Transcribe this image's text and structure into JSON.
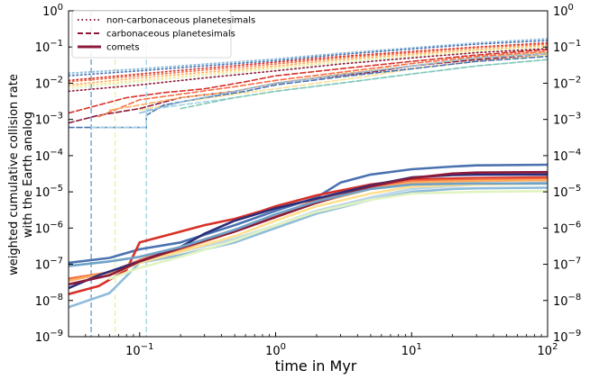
{
  "chart_data": {
    "type": "line",
    "xlabel": "time in Myr",
    "ylabel": "weighted cumulative collision rate",
    "ylabel_line2": "with the Earth analog",
    "xscale": "log",
    "yscale": "log",
    "xlim": [
      0.03,
      100
    ],
    "ylim": [
      1e-09,
      1
    ],
    "x_ticks": [
      {
        "value": 0.1,
        "base": "10",
        "exp": "−1"
      },
      {
        "value": 1,
        "base": "10",
        "exp": "0"
      },
      {
        "value": 10,
        "base": "10",
        "exp": "1"
      },
      {
        "value": 100,
        "base": "10",
        "exp": "2"
      }
    ],
    "y_ticks": [
      {
        "value": 1,
        "base": "10",
        "exp": "0"
      },
      {
        "value": 0.1,
        "base": "10",
        "exp": "−1"
      },
      {
        "value": 0.01,
        "base": "10",
        "exp": "−2"
      },
      {
        "value": 0.001,
        "base": "10",
        "exp": "−3"
      },
      {
        "value": 0.0001,
        "base": "10",
        "exp": "−4"
      },
      {
        "value": 1e-05,
        "base": "10",
        "exp": "−5"
      },
      {
        "value": 1e-06,
        "base": "10",
        "exp": "−6"
      },
      {
        "value": 1e-07,
        "base": "10",
        "exp": "−7"
      },
      {
        "value": 1e-08,
        "base": "10",
        "exp": "−8"
      },
      {
        "value": 1e-09,
        "base": "10",
        "exp": "−9"
      }
    ],
    "right_y_ticks": true,
    "grid": false,
    "legend_position": "top-left",
    "legend": [
      {
        "label": "non-carbonaceous planetesimals",
        "style": "dotted",
        "color": "#8b1a3a"
      },
      {
        "label": "carbonaceous planetesimals",
        "style": "dashed",
        "color": "#8b1a3a"
      },
      {
        "label": "comets",
        "style": "solid",
        "color": "#8b1a3a"
      }
    ],
    "vertical_lines": [
      {
        "x": 0.044,
        "color": "#6fa2c7"
      },
      {
        "x": 0.066,
        "color": "#e8f0b0"
      },
      {
        "x": 0.112,
        "color": "#a8d3e6"
      }
    ],
    "series": [
      {
        "style": "dotted",
        "color": "#bcd7e8",
        "x": [
          0.03,
          0.1,
          0.3,
          1,
          3,
          10,
          30,
          100
        ],
        "y": [
          0.018,
          0.024,
          0.032,
          0.045,
          0.065,
          0.09,
          0.12,
          0.16
        ]
      },
      {
        "style": "dotted",
        "color": "#8fbcd9",
        "x": [
          0.03,
          0.1,
          0.3,
          1,
          3,
          10,
          30,
          100
        ],
        "y": [
          0.019,
          0.025,
          0.034,
          0.047,
          0.068,
          0.095,
          0.13,
          0.17
        ]
      },
      {
        "style": "dotted",
        "color": "#4a72b0",
        "x": [
          0.03,
          0.1,
          0.3,
          1,
          3,
          10,
          30,
          100
        ],
        "y": [
          0.016,
          0.022,
          0.03,
          0.042,
          0.062,
          0.088,
          0.12,
          0.15
        ]
      },
      {
        "style": "dotted",
        "color": "#d73027",
        "x": [
          0.03,
          0.1,
          0.3,
          1,
          3,
          10,
          30,
          100
        ],
        "y": [
          0.012,
          0.018,
          0.026,
          0.038,
          0.055,
          0.075,
          0.1,
          0.13
        ]
      },
      {
        "style": "dotted",
        "color": "#f46d43",
        "x": [
          0.03,
          0.1,
          0.3,
          1,
          3,
          10,
          30,
          100
        ],
        "y": [
          0.011,
          0.016,
          0.023,
          0.034,
          0.05,
          0.07,
          0.095,
          0.12
        ]
      },
      {
        "style": "dotted",
        "color": "#fdae61",
        "x": [
          0.03,
          0.1,
          0.3,
          1,
          3,
          10,
          30,
          100
        ],
        "y": [
          0.009,
          0.014,
          0.02,
          0.03,
          0.045,
          0.063,
          0.085,
          0.11
        ]
      },
      {
        "style": "dotted",
        "color": "#fee090",
        "x": [
          0.03,
          0.1,
          0.3,
          1,
          3,
          10,
          30,
          100
        ],
        "y": [
          0.008,
          0.012,
          0.018,
          0.027,
          0.04,
          0.058,
          0.08,
          0.1
        ]
      },
      {
        "style": "dotted",
        "color": "#e0f3c0",
        "x": [
          0.03,
          0.1,
          0.3,
          1,
          3,
          10,
          30,
          100
        ],
        "y": [
          0.007,
          0.011,
          0.016,
          0.025,
          0.038,
          0.055,
          0.075,
          0.095
        ]
      },
      {
        "style": "dotted",
        "color": "#8b1a3a",
        "x": [
          0.03,
          0.1,
          0.3,
          1,
          3,
          10,
          30,
          100
        ],
        "y": [
          0.006,
          0.009,
          0.014,
          0.022,
          0.034,
          0.05,
          0.07,
          0.09
        ]
      },
      {
        "style": "dashed",
        "color": "#8b1a3a",
        "x": [
          0.03,
          0.05,
          0.1,
          0.2,
          0.5,
          1,
          2,
          5,
          10,
          30,
          100
        ],
        "y": [
          0.0008,
          0.0013,
          0.002,
          0.004,
          0.006,
          0.01,
          0.014,
          0.02,
          0.03,
          0.045,
          0.06
        ]
      },
      {
        "style": "dashed",
        "color": "#d73027",
        "x": [
          0.03,
          0.05,
          0.08,
          0.15,
          0.3,
          0.6,
          1,
          3,
          10,
          30,
          100
        ],
        "y": [
          0.0015,
          0.0025,
          0.004,
          0.0055,
          0.007,
          0.011,
          0.016,
          0.025,
          0.04,
          0.06,
          0.085
        ]
      },
      {
        "style": "dashed",
        "color": "#f46d43",
        "x": [
          0.05,
          0.1,
          0.2,
          0.5,
          1,
          3,
          10,
          30,
          100
        ],
        "y": [
          0.0012,
          0.0035,
          0.005,
          0.008,
          0.012,
          0.02,
          0.035,
          0.055,
          0.075
        ]
      },
      {
        "style": "dashed",
        "color": "#fdae61",
        "x": [
          0.06,
          0.1,
          0.2,
          0.5,
          1,
          3,
          10,
          30,
          100
        ],
        "y": [
          0.0018,
          0.0025,
          0.004,
          0.006,
          0.01,
          0.018,
          0.03,
          0.05,
          0.07
        ]
      },
      {
        "style": "dashed",
        "color": "#fee090",
        "x": [
          0.1,
          0.2,
          0.5,
          1,
          2,
          5,
          10,
          30,
          100
        ],
        "y": [
          0.0018,
          0.003,
          0.005,
          0.007,
          0.01,
          0.016,
          0.025,
          0.04,
          0.06
        ]
      },
      {
        "style": "dashed",
        "color": "#4a72b0",
        "x": [
          0.03,
          0.112,
          0.112,
          0.15,
          0.3,
          0.6,
          1,
          3,
          10,
          30,
          100
        ],
        "y": [
          0.0006,
          0.0006,
          0.0013,
          0.0025,
          0.004,
          0.006,
          0.009,
          0.015,
          0.025,
          0.04,
          0.055
        ]
      },
      {
        "style": "dashed",
        "color": "#a8d3e6",
        "x": [
          0.044,
          0.112,
          0.112,
          0.2,
          0.5,
          1,
          3,
          10,
          30,
          100
        ],
        "y": [
          0.0006,
          0.0006,
          0.0018,
          0.0025,
          0.004,
          0.006,
          0.01,
          0.018,
          0.03,
          0.045
        ]
      },
      {
        "style": "dashed",
        "color": "#8fbcd9",
        "x": [
          0.1,
          0.2,
          0.5,
          1,
          3,
          10,
          30,
          100
        ],
        "y": [
          0.0015,
          0.003,
          0.006,
          0.01,
          0.017,
          0.03,
          0.05,
          0.065
        ]
      },
      {
        "style": "dashed",
        "color": "#80c9b5",
        "x": [
          0.2,
          0.5,
          1,
          3,
          10,
          30,
          100
        ],
        "y": [
          0.002,
          0.004,
          0.006,
          0.01,
          0.018,
          0.03,
          0.045
        ]
      },
      {
        "style": "solid",
        "color": "#4a72b0",
        "x": [
          0.03,
          0.06,
          0.1,
          0.2,
          0.5,
          1,
          2,
          3,
          5,
          10,
          20,
          30,
          100
        ],
        "y": [
          1.1e-07,
          1.5e-07,
          2.6e-07,
          4e-07,
          1.2e-06,
          3e-06,
          7e-06,
          1.8e-05,
          3e-05,
          4.2e-05,
          5e-05,
          5.4e-05,
          5.6e-05
        ]
      },
      {
        "style": "solid",
        "color": "#8fbcd9",
        "x": [
          0.03,
          0.06,
          0.1,
          0.2,
          0.5,
          1,
          2,
          5,
          10,
          20,
          30,
          100
        ],
        "y": [
          6.5e-09,
          1.6e-08,
          1.1e-07,
          1.8e-07,
          4e-07,
          1e-06,
          2.5e-06,
          6e-06,
          1e-05,
          1.2e-05,
          1.25e-05,
          1.3e-05
        ]
      },
      {
        "style": "solid",
        "color": "#bcd7e8",
        "x": [
          0.1,
          0.2,
          0.5,
          1,
          2,
          5,
          10,
          30,
          100
        ],
        "y": [
          1.2e-07,
          2.2e-07,
          5e-07,
          1.2e-06,
          3e-06,
          7e-06,
          1.2e-05,
          1.6e-05,
          1.8e-05
        ]
      },
      {
        "style": "solid",
        "color": "#d73027",
        "x": [
          0.03,
          0.05,
          0.08,
          0.1,
          0.2,
          0.3,
          0.5,
          0.8,
          1,
          2,
          5,
          10,
          30,
          100
        ],
        "y": [
          1.5e-08,
          2.5e-08,
          7e-08,
          4e-07,
          8e-07,
          1.2e-06,
          1.8e-06,
          3e-06,
          4e-06,
          8e-06,
          1.6e-05,
          2.2e-05,
          2.4e-05,
          2.5e-05
        ]
      },
      {
        "style": "solid",
        "color": "#f46d43",
        "x": [
          0.03,
          0.06,
          0.1,
          0.2,
          0.5,
          1,
          2,
          5,
          10,
          30,
          100
        ],
        "y": [
          4e-08,
          6e-08,
          1.3e-07,
          3e-07,
          9e-07,
          2.2e-06,
          6e-06,
          1.4e-05,
          2e-05,
          2.2e-05,
          2.3e-05
        ]
      },
      {
        "style": "solid",
        "color": "#fdae61",
        "x": [
          0.03,
          0.06,
          0.1,
          0.2,
          0.5,
          1,
          2,
          5,
          10,
          30,
          100
        ],
        "y": [
          3.5e-08,
          6e-08,
          1.1e-07,
          2.5e-07,
          8e-07,
          2e-06,
          5e-06,
          1.2e-05,
          1.8e-05,
          2e-05,
          2.1e-05
        ]
      },
      {
        "style": "solid",
        "color": "#fee090",
        "x": [
          0.06,
          0.1,
          0.2,
          0.5,
          1,
          2,
          5,
          10,
          30,
          100
        ],
        "y": [
          5e-08,
          1.1e-07,
          2.2e-07,
          6e-07,
          1.6e-06,
          4e-06,
          9e-06,
          1.4e-05,
          1.6e-05,
          1.7e-05
        ]
      },
      {
        "style": "solid",
        "color": "#e0f3c0",
        "x": [
          0.06,
          0.1,
          0.2,
          0.5,
          1,
          2,
          5,
          10,
          30,
          100
        ],
        "y": [
          4e-08,
          8e-08,
          1.6e-07,
          4.5e-07,
          1.2e-06,
          2.8e-06,
          6e-06,
          9e-06,
          1e-05,
          1.05e-05
        ]
      },
      {
        "style": "solid",
        "color": "#2b2d7a",
        "x": [
          0.03,
          0.05,
          0.1,
          0.2,
          0.3,
          0.5,
          1,
          2,
          5,
          10,
          20,
          30,
          100
        ],
        "y": [
          2.2e-08,
          5e-08,
          1.2e-07,
          3e-07,
          7e-07,
          1.6e-06,
          3.5e-06,
          6.5e-06,
          1.5e-05,
          2.5e-05,
          2.9e-05,
          3e-05,
          3e-05
        ]
      },
      {
        "style": "solid",
        "color": "#8b1a3a",
        "x": [
          0.03,
          0.06,
          0.1,
          0.2,
          0.5,
          1,
          2,
          5,
          10,
          20,
          30,
          100
        ],
        "y": [
          2.8e-08,
          5e-08,
          1.2e-07,
          2.8e-07,
          8e-07,
          2e-06,
          5e-06,
          1.4e-05,
          2.4e-05,
          3.2e-05,
          3.4e-05,
          3.5e-05
        ]
      },
      {
        "style": "solid",
        "color": "#6fa2c7",
        "x": [
          0.03,
          0.06,
          0.1,
          0.2,
          0.5,
          1,
          2,
          5,
          10,
          30,
          100
        ],
        "y": [
          9e-08,
          1.2e-07,
          1.6e-07,
          3e-07,
          9e-07,
          2.4e-06,
          5.5e-06,
          1.2e-05,
          1.6e-05,
          1.7e-05,
          1.7e-05
        ]
      }
    ]
  }
}
